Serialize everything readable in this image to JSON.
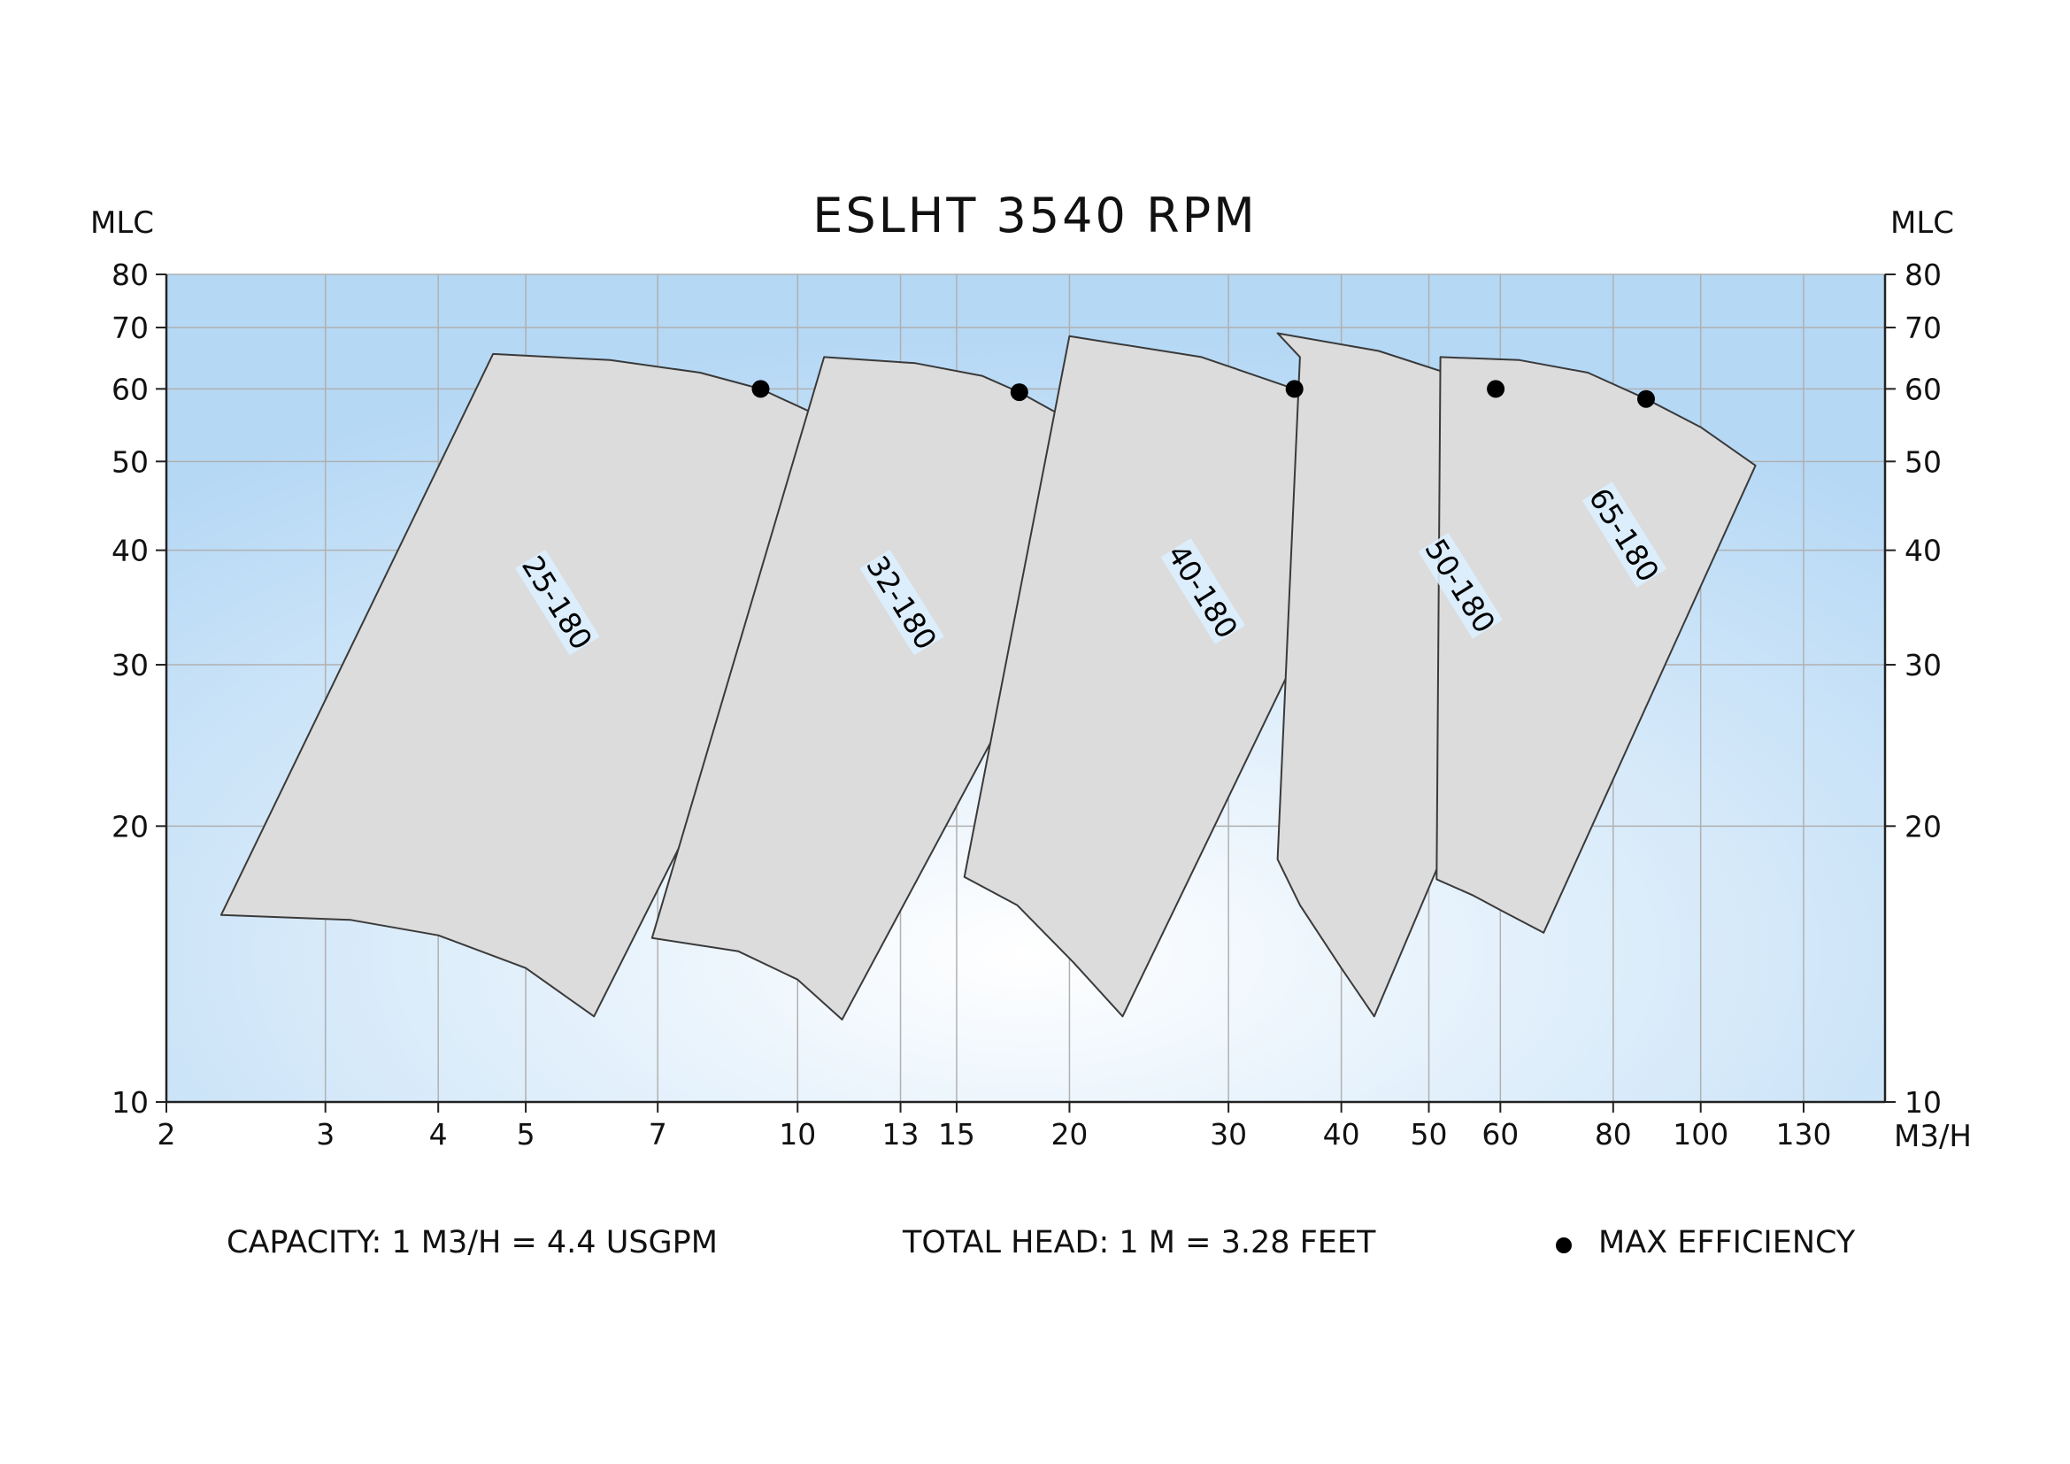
{
  "chart_data": {
    "type": "area",
    "title": "ESLHT 3540 RPM",
    "ylabel_left": "MLC",
    "ylabel_right": "MLC",
    "xlabel": "M3/H",
    "x_scale": "log",
    "y_scale": "log",
    "xlim": [
      2,
      160
    ],
    "ylim": [
      10,
      80
    ],
    "x_ticks": [
      2,
      3,
      4,
      5,
      7,
      10,
      13,
      15,
      20,
      30,
      40,
      50,
      60,
      80,
      100,
      130
    ],
    "y_ticks": [
      10,
      20,
      30,
      40,
      50,
      60,
      70,
      80
    ],
    "grid": true,
    "series": [
      {
        "name": "25-180",
        "label_at": [
          5.4,
          35
        ],
        "outline": [
          [
            2.3,
            16
          ],
          [
            4.6,
            65.5
          ],
          [
            6.2,
            64.5
          ],
          [
            7.8,
            62.5
          ],
          [
            9.1,
            60
          ],
          [
            10.8,
            55.5
          ],
          [
            12.2,
            50.5
          ],
          [
            5.95,
            12.4
          ],
          [
            5.0,
            14.0
          ],
          [
            4.0,
            15.2
          ],
          [
            3.2,
            15.8
          ],
          [
            2.3,
            16
          ]
        ],
        "max_efficiency": [
          9.1,
          60
        ]
      },
      {
        "name": "32-180",
        "label_at": [
          13.0,
          35
        ],
        "outline": [
          [
            6.9,
            15.1
          ],
          [
            10.7,
            65
          ],
          [
            13.5,
            64
          ],
          [
            16.0,
            62
          ],
          [
            17.6,
            59.5
          ],
          [
            20.0,
            55.5
          ],
          [
            23.5,
            48
          ],
          [
            11.2,
            12.3
          ],
          [
            10.0,
            13.6
          ],
          [
            8.6,
            14.6
          ],
          [
            6.9,
            15.1
          ]
        ],
        "max_efficiency": [
          17.6,
          59.5
        ]
      },
      {
        "name": "40-180",
        "label_at": [
          28.0,
          36
        ],
        "outline": [
          [
            15.3,
            17.6
          ],
          [
            20.0,
            68.5
          ],
          [
            28.0,
            65
          ],
          [
            35.5,
            60
          ],
          [
            40.0,
            56
          ],
          [
            45.8,
            51
          ],
          [
            22.9,
            12.4
          ],
          [
            20.2,
            14.2
          ],
          [
            17.5,
            16.4
          ],
          [
            15.3,
            17.6
          ]
        ],
        "max_efficiency": [
          35.5,
          60
        ]
      },
      {
        "name": "50-180",
        "label_at": [
          54.0,
          36.5
        ],
        "outline": [
          [
            34.0,
            18.4
          ],
          [
            36.0,
            65
          ],
          [
            34.0,
            69
          ],
          [
            44.0,
            66
          ],
          [
            59.3,
            60
          ],
          [
            68.0,
            56
          ],
          [
            79.0,
            49.5
          ],
          [
            43.5,
            12.4
          ],
          [
            40.0,
            14.0
          ],
          [
            36.0,
            16.4
          ],
          [
            34.0,
            18.4
          ]
        ],
        "max_efficiency": [
          59.3,
          60
        ]
      },
      {
        "name": "65-180",
        "label_at": [
          82.0,
          41.5
        ],
        "outline": [
          [
            51.0,
            17.5
          ],
          [
            51.5,
            65
          ],
          [
            63.0,
            64.5
          ],
          [
            75.0,
            62.5
          ],
          [
            87.0,
            58.5
          ],
          [
            100.0,
            54.5
          ],
          [
            115.0,
            49.5
          ],
          [
            67.0,
            15.3
          ],
          [
            60.0,
            16.2
          ],
          [
            56.0,
            16.8
          ],
          [
            51.0,
            17.5
          ]
        ],
        "max_efficiency": [
          87.0,
          58.5
        ]
      }
    ],
    "annotations": {
      "capacity": "CAPACITY: 1 M3/H = 4.4 USGPM",
      "head": "TOTAL HEAD: 1 M = 3.28 FEET",
      "legend": "MAX EFFICIENCY"
    },
    "colors": {
      "background_edge": "#b5d8f5",
      "background_center": "#ffffff",
      "curve_fill": "#dcdcdc",
      "curve_stroke": "#3a3a3a",
      "grid": "#b0b0b0",
      "dot": "#000000"
    }
  }
}
